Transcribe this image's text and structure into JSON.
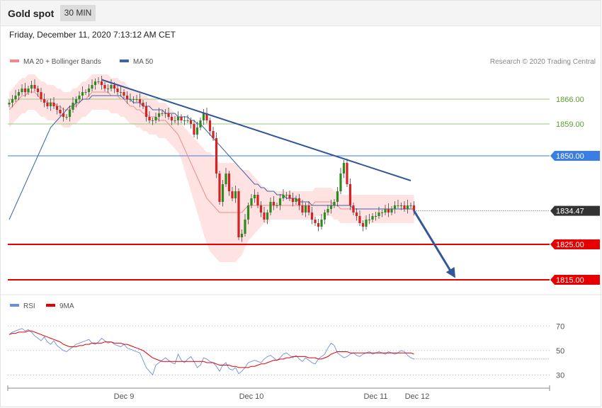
{
  "header": {
    "title": "Gold spot",
    "timeframe": "30 MIN",
    "datetime": "Friday, December 11, 2020 7:13:12 AM CET"
  },
  "colors": {
    "bull": "#2e8b1f",
    "bear": "#d52222",
    "bollinger_fill": "#ffdede",
    "ma20": "#f08a8a",
    "ma50": "#3d63a8",
    "trendline": "#33569b",
    "resistance_green": "#9ac97a",
    "pivot_blue": "#3b7de6",
    "support_red": "#e60000",
    "rsi": "#6b8ee0",
    "rsi_ma": "#e60000"
  },
  "chart_data": [
    {
      "type": "candlestick",
      "legend": [
        {
          "name": "MA 20 + Bollinger Bands",
          "color": "#f08a8a"
        },
        {
          "name": "MA 50",
          "color": "#3d63a8"
        }
      ],
      "source": "Research © 2020 Trading Central",
      "ylim": [
        1810,
        1874
      ],
      "x_ticks": [
        {
          "label": "Dec 9",
          "index": 36
        },
        {
          "label": "Dec 10",
          "index": 76
        },
        {
          "label": "Dec 11",
          "index": 115
        },
        {
          "label": "Dec 12",
          "index": 128
        }
      ],
      "levels": [
        {
          "label": "1866.00",
          "value": 1866.0,
          "kind": "resistance"
        },
        {
          "label": "1859.00",
          "value": 1859.0,
          "kind": "resistance"
        },
        {
          "label": "1850.00",
          "value": 1850.0,
          "kind": "pivot"
        },
        {
          "label": "1834.47",
          "value": 1834.47,
          "kind": "last"
        },
        {
          "label": "1825.00",
          "value": 1825.0,
          "kind": "support"
        },
        {
          "label": "1815.00",
          "value": 1815.0,
          "kind": "support"
        }
      ],
      "trendline": [
        {
          "index": 29,
          "value": 1871.5
        },
        {
          "index": 126,
          "value": 1843.0
        }
      ],
      "forecast_arrow": [
        {
          "index": 127,
          "value": 1834.5
        },
        {
          "index": 140,
          "value": 1815.5
        }
      ],
      "close": [
        1865,
        1866,
        1867,
        1868,
        1869,
        1868,
        1869,
        1870,
        1869,
        1868,
        1866,
        1865,
        1864,
        1865,
        1864,
        1863,
        1862,
        1861,
        1861,
        1863,
        1865,
        1866,
        1867,
        1868,
        1868,
        1869,
        1870,
        1871,
        1871,
        1870,
        1869,
        1869,
        1870,
        1869,
        1868,
        1868,
        1867,
        1866,
        1866,
        1866,
        1866,
        1865,
        1864,
        1861,
        1860,
        1860,
        1861,
        1862,
        1862,
        1862,
        1861,
        1860,
        1860,
        1861,
        1860,
        1860,
        1860,
        1859,
        1856,
        1858,
        1860,
        1862,
        1860,
        1857,
        1855,
        1845,
        1837,
        1842,
        1845,
        1840,
        1838,
        1840,
        1827,
        1828,
        1832,
        1836,
        1838,
        1839,
        1836,
        1834,
        1832,
        1834,
        1837,
        1836,
        1836,
        1838,
        1839,
        1839,
        1838,
        1837,
        1838,
        1836,
        1834,
        1836,
        1834,
        1832,
        1831,
        1830,
        1832,
        1834,
        1835,
        1836,
        1837,
        1840,
        1845,
        1848,
        1842,
        1836,
        1834,
        1833,
        1831,
        1830,
        1832,
        1832,
        1833,
        1833,
        1834,
        1834,
        1835,
        1834,
        1835,
        1836,
        1836,
        1836,
        1835,
        1836,
        1836,
        1834.47
      ],
      "ma50": [
        1832,
        1834,
        1836,
        1838,
        1840,
        1842,
        1844,
        1846,
        1848,
        1850,
        1852,
        1854,
        1856,
        1858,
        1859,
        1860,
        1861,
        1862,
        1863,
        1864,
        1864,
        1865,
        1865,
        1866,
        1866,
        1866,
        1867,
        1867,
        1867,
        1867,
        1867,
        1867,
        1867,
        1867,
        1867,
        1867,
        1866,
        1866,
        1866,
        1865,
        1865,
        1865,
        1864,
        1864,
        1864,
        1863,
        1863,
        1863,
        1863,
        1862,
        1862,
        1862,
        1862,
        1861,
        1861,
        1861,
        1861,
        1860,
        1860,
        1859,
        1859,
        1858,
        1857,
        1856,
        1855,
        1854,
        1853,
        1852,
        1851,
        1850,
        1849,
        1848,
        1847,
        1846,
        1845,
        1844,
        1843,
        1842,
        1842,
        1841,
        1841,
        1840,
        1840,
        1840,
        1839,
        1839,
        1839,
        1838,
        1838,
        1838,
        1838,
        1837,
        1837,
        1837,
        1837,
        1836,
        1836,
        1836,
        1836,
        1836,
        1836,
        1836,
        1836,
        1836,
        1836,
        1836,
        1836,
        1836,
        1835,
        1835,
        1835,
        1835,
        1835,
        1835,
        1835,
        1835,
        1835,
        1835,
        1835,
        1835,
        1835,
        1835,
        1835,
        1835,
        1835,
        1835,
        1835,
        1835
      ],
      "ma20": [
        1863,
        1864,
        1865,
        1866,
        1867,
        1867,
        1868,
        1868,
        1868,
        1867,
        1866,
        1866,
        1865,
        1865,
        1865,
        1864,
        1864,
        1863,
        1863,
        1863,
        1864,
        1864,
        1865,
        1866,
        1866,
        1867,
        1868,
        1868,
        1868,
        1868,
        1868,
        1868,
        1867,
        1867,
        1867,
        1866,
        1866,
        1865,
        1864,
        1864,
        1863,
        1863,
        1862,
        1862,
        1861,
        1861,
        1861,
        1860,
        1860,
        1860,
        1859,
        1858,
        1857,
        1856,
        1854,
        1852,
        1850,
        1848,
        1846,
        1844,
        1842,
        1840,
        1838,
        1837,
        1836,
        1835,
        1834,
        1834,
        1834,
        1834,
        1834,
        1834,
        1834,
        1834,
        1835,
        1836,
        1836,
        1836,
        1836,
        1836,
        1836,
        1836,
        1836,
        1836,
        1836,
        1836,
        1836,
        1836,
        1836,
        1836,
        1836,
        1836,
        1836,
        1836,
        1836,
        1836,
        1837,
        1837,
        1837,
        1837,
        1837,
        1837,
        1836,
        1836,
        1835,
        1835,
        1835,
        1835,
        1835,
        1835,
        1835,
        1835,
        1835,
        1835,
        1835,
        1835,
        1835,
        1835,
        1835,
        1835,
        1835,
        1835,
        1835,
        1835,
        1835,
        1835,
        1835,
        1835
      ],
      "band_width": [
        5,
        5,
        5,
        5,
        5,
        5,
        5,
        5,
        5,
        5,
        5,
        5,
        5,
        5,
        5,
        5,
        5,
        5,
        5,
        5,
        5,
        5,
        5,
        5,
        5,
        5,
        5,
        5,
        5,
        5,
        5,
        5,
        5,
        5,
        5,
        5,
        5,
        5,
        5,
        5,
        5,
        5,
        5,
        5,
        5,
        5,
        5,
        5,
        5,
        5,
        5,
        5,
        5,
        5,
        5,
        6,
        7,
        8,
        9,
        10,
        11,
        12,
        13,
        14,
        14,
        14,
        14,
        14,
        14,
        14,
        14,
        14,
        13,
        12,
        11,
        10,
        9,
        8,
        7,
        6,
        5,
        5,
        4,
        4,
        4,
        4,
        4,
        4,
        4,
        4,
        4,
        4,
        4,
        4,
        4,
        4,
        4,
        4,
        4,
        4,
        4,
        4,
        4,
        4,
        4,
        4,
        4,
        4,
        4,
        4,
        4,
        4,
        4,
        4,
        4,
        4,
        4,
        4,
        4,
        4,
        4,
        4,
        4,
        4,
        4,
        4,
        4,
        4
      ]
    },
    {
      "type": "line",
      "legend": [
        {
          "name": "RSI",
          "color": "#6b8ee0"
        },
        {
          "name": "9MA",
          "color": "#e60000"
        }
      ],
      "ylim": [
        18,
        80
      ],
      "y_ticks": [
        70,
        50,
        30
      ],
      "rsi": [
        63,
        65,
        66,
        67,
        68,
        66,
        67,
        65,
        62,
        60,
        58,
        61,
        57,
        55,
        58,
        54,
        52,
        50,
        49,
        51,
        53,
        55,
        56,
        57,
        58,
        59,
        56,
        55,
        57,
        60,
        58,
        56,
        57,
        55,
        54,
        53,
        55,
        52,
        51,
        50,
        49,
        48,
        42,
        36,
        33,
        30,
        38,
        40,
        42,
        44,
        42,
        40,
        39,
        47,
        42,
        40,
        43,
        45,
        41,
        36,
        38,
        44,
        43,
        41,
        40,
        37,
        33,
        38,
        40,
        35,
        34,
        36,
        31,
        33,
        36,
        40,
        41,
        42,
        41,
        40,
        43,
        45,
        46,
        44,
        42,
        44,
        47,
        48,
        46,
        44,
        46,
        43,
        41,
        44,
        42,
        40,
        39,
        43,
        45,
        47,
        52,
        56,
        54,
        48,
        46,
        44,
        45,
        47,
        48,
        46,
        45,
        47,
        48,
        49,
        47,
        48,
        49,
        48,
        47,
        49,
        48,
        47,
        48,
        50,
        49,
        46,
        44,
        43
      ],
      "rsi_ma": [
        63,
        64,
        64,
        65,
        65,
        65,
        66,
        66,
        65,
        64,
        63,
        62,
        61,
        60,
        59,
        58,
        57,
        55,
        54,
        53,
        53,
        53,
        54,
        54,
        55,
        55,
        56,
        56,
        56,
        56,
        57,
        57,
        57,
        56,
        56,
        56,
        55,
        55,
        54,
        53,
        52,
        51,
        50,
        48,
        46,
        44,
        43,
        42,
        41,
        41,
        41,
        41,
        41,
        41,
        41,
        41,
        41,
        41,
        41,
        41,
        41,
        41,
        40,
        40,
        40,
        39,
        38,
        38,
        38,
        38,
        37,
        37,
        36,
        36,
        36,
        36,
        37,
        37,
        38,
        39,
        39,
        40,
        41,
        42,
        42,
        43,
        43,
        44,
        44,
        45,
        45,
        45,
        45,
        45,
        44,
        44,
        44,
        43,
        43,
        44,
        45,
        47,
        48,
        49,
        49,
        49,
        49,
        48,
        48,
        48,
        48,
        48,
        48,
        48,
        48,
        48,
        48,
        48,
        48,
        48,
        48,
        48,
        48,
        48,
        48,
        48,
        48,
        47
      ]
    }
  ]
}
